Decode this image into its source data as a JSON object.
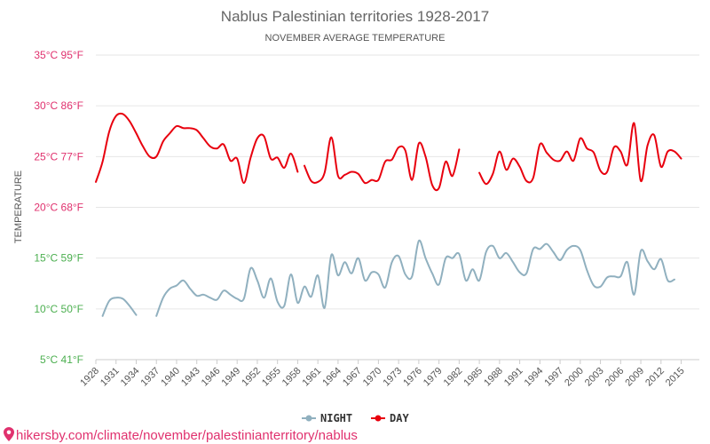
{
  "chart_data": {
    "type": "line",
    "title": "Nablus Palestinian territories 1928-2017",
    "subtitle": "NOVEMBER AVERAGE TEMPERATURE",
    "ylabel": "TEMPERATURE",
    "xlabel": "",
    "x_range": [
      1928,
      2017
    ],
    "ylim": [
      5,
      35
    ],
    "y_ticks": [
      {
        "value": 35,
        "label": "35°C 95°F",
        "color": "#e0316e"
      },
      {
        "value": 30,
        "label": "30°C 86°F",
        "color": "#e0316e"
      },
      {
        "value": 25,
        "label": "25°C 77°F",
        "color": "#e0316e"
      },
      {
        "value": 20,
        "label": "20°C 68°F",
        "color": "#e0316e"
      },
      {
        "value": 15,
        "label": "15°C 59°F",
        "color": "#4caf50"
      },
      {
        "value": 10,
        "label": "10°C 50°F",
        "color": "#4caf50"
      },
      {
        "value": 5,
        "label": "5°C 41°F",
        "color": "#4caf50"
      }
    ],
    "x_ticks": [
      "1928",
      "1931",
      "1934",
      "1937",
      "1940",
      "1943",
      "1946",
      "1949",
      "1952",
      "1955",
      "1958",
      "1961",
      "1964",
      "1967",
      "1970",
      "1973",
      "1976",
      "1979",
      "1982",
      "1985",
      "1988",
      "1991",
      "1994",
      "1997",
      "2000",
      "2003",
      "2006",
      "2009",
      "2012",
      "2015"
    ],
    "x_tick_values": [
      1928,
      1931,
      1934,
      1937,
      1940,
      1943,
      1946,
      1949,
      1952,
      1955,
      1958,
      1961,
      1964,
      1967,
      1970,
      1973,
      1976,
      1979,
      1982,
      1985,
      1988,
      1991,
      1994,
      1997,
      2000,
      2003,
      2006,
      2009,
      2012,
      2015
    ],
    "series": [
      {
        "name": "DAY",
        "color": "#e8000e",
        "segments": [
          [
            [
              1928,
              22.5
            ],
            [
              1929,
              24.5
            ],
            [
              1930,
              27.5
            ],
            [
              1931,
              29.0
            ],
            [
              1932,
              29.2
            ],
            [
              1933,
              28.5
            ],
            [
              1934,
              27.3
            ],
            [
              1935,
              26.0
            ],
            [
              1936,
              25.0
            ],
            [
              1937,
              25.0
            ],
            [
              1938,
              26.5
            ],
            [
              1939,
              27.3
            ],
            [
              1940,
              28.0
            ],
            [
              1941,
              27.8
            ],
            [
              1942,
              27.8
            ],
            [
              1943,
              27.6
            ],
            [
              1944,
              26.8
            ],
            [
              1945,
              26.0
            ],
            [
              1946,
              25.8
            ],
            [
              1947,
              26.2
            ],
            [
              1948,
              24.6
            ],
            [
              1949,
              24.8
            ],
            [
              1950,
              22.4
            ],
            [
              1951,
              24.9
            ],
            [
              1952,
              26.8
            ],
            [
              1953,
              27.0
            ],
            [
              1954,
              24.8
            ],
            [
              1955,
              24.9
            ],
            [
              1956,
              23.9
            ],
            [
              1957,
              25.3
            ],
            [
              1958,
              23.5
            ]
          ],
          [
            [
              1959,
              24.1
            ],
            [
              1960,
              22.6
            ],
            [
              1961,
              22.5
            ],
            [
              1962,
              23.4
            ],
            [
              1963,
              26.9
            ],
            [
              1964,
              23.1
            ],
            [
              1965,
              23.2
            ],
            [
              1966,
              23.5
            ],
            [
              1967,
              23.3
            ],
            [
              1968,
              22.4
            ],
            [
              1969,
              22.7
            ],
            [
              1970,
              22.7
            ],
            [
              1971,
              24.5
            ],
            [
              1972,
              24.7
            ],
            [
              1973,
              25.9
            ],
            [
              1974,
              25.6
            ],
            [
              1975,
              22.7
            ],
            [
              1976,
              26.3
            ],
            [
              1977,
              25.0
            ],
            [
              1978,
              22.2
            ],
            [
              1979,
              21.9
            ],
            [
              1980,
              24.5
            ],
            [
              1981,
              23.1
            ],
            [
              1982,
              25.7
            ]
          ],
          [
            [
              1985,
              23.4
            ],
            [
              1986,
              22.3
            ],
            [
              1987,
              23.3
            ],
            [
              1988,
              25.5
            ],
            [
              1989,
              23.7
            ],
            [
              1990,
              24.8
            ],
            [
              1991,
              24.0
            ],
            [
              1992,
              22.6
            ],
            [
              1993,
              22.9
            ],
            [
              1994,
              26.2
            ],
            [
              1995,
              25.4
            ],
            [
              1996,
              24.7
            ],
            [
              1997,
              24.6
            ],
            [
              1998,
              25.5
            ],
            [
              1999,
              24.6
            ],
            [
              2000,
              26.8
            ],
            [
              2001,
              25.8
            ],
            [
              2002,
              25.4
            ],
            [
              2003,
              23.6
            ],
            [
              2004,
              23.5
            ],
            [
              2005,
              25.9
            ],
            [
              2006,
              25.5
            ],
            [
              2007,
              24.2
            ],
            [
              2008,
              28.3
            ],
            [
              2009,
              22.6
            ],
            [
              2010,
              26.1
            ],
            [
              2011,
              27.1
            ],
            [
              2012,
              24.0
            ],
            [
              2013,
              25.5
            ],
            [
              2014,
              25.5
            ],
            [
              2015,
              24.8
            ]
          ]
        ]
      },
      {
        "name": "NIGHT",
        "color": "#90b0bf",
        "segments": [
          [
            [
              1929,
              9.3
            ],
            [
              1930,
              10.8
            ],
            [
              1931,
              11.1
            ],
            [
              1932,
              11.0
            ],
            [
              1933,
              10.3
            ],
            [
              1934,
              9.4
            ]
          ],
          [
            [
              1937,
              9.3
            ],
            [
              1938,
              11.1
            ],
            [
              1939,
              12.0
            ],
            [
              1940,
              12.3
            ],
            [
              1941,
              12.8
            ],
            [
              1942,
              12.0
            ],
            [
              1943,
              11.3
            ],
            [
              1944,
              11.4
            ],
            [
              1945,
              11.1
            ],
            [
              1946,
              10.9
            ],
            [
              1947,
              11.8
            ],
            [
              1948,
              11.4
            ],
            [
              1949,
              11.0
            ],
            [
              1950,
              11.0
            ],
            [
              1951,
              14.0
            ],
            [
              1952,
              12.8
            ],
            [
              1953,
              11.1
            ],
            [
              1954,
              13.0
            ],
            [
              1955,
              10.7
            ],
            [
              1956,
              10.3
            ],
            [
              1957,
              13.4
            ],
            [
              1958,
              10.6
            ],
            [
              1959,
              12.2
            ],
            [
              1960,
              11.2
            ],
            [
              1961,
              13.3
            ],
            [
              1962,
              10.1
            ],
            [
              1963,
              15.3
            ],
            [
              1964,
              13.3
            ],
            [
              1965,
              14.6
            ],
            [
              1966,
              13.5
            ],
            [
              1967,
              15.0
            ],
            [
              1968,
              12.8
            ],
            [
              1969,
              13.6
            ],
            [
              1970,
              13.4
            ],
            [
              1971,
              12.1
            ],
            [
              1972,
              14.6
            ],
            [
              1973,
              15.2
            ],
            [
              1974,
              13.4
            ],
            [
              1975,
              13.2
            ],
            [
              1976,
              16.7
            ],
            [
              1977,
              15.0
            ],
            [
              1978,
              13.5
            ],
            [
              1979,
              12.4
            ],
            [
              1980,
              15.0
            ],
            [
              1981,
              15.0
            ],
            [
              1982,
              15.4
            ],
            [
              1983,
              12.8
            ],
            [
              1984,
              13.9
            ],
            [
              1985,
              12.8
            ],
            [
              1986,
              15.6
            ],
            [
              1987,
              16.2
            ],
            [
              1988,
              15.0
            ],
            [
              1989,
              15.5
            ],
            [
              1990,
              14.6
            ],
            [
              1991,
              13.6
            ],
            [
              1992,
              13.5
            ],
            [
              1993,
              15.9
            ],
            [
              1994,
              15.9
            ],
            [
              1995,
              16.4
            ],
            [
              1996,
              15.6
            ],
            [
              1997,
              14.8
            ],
            [
              1998,
              15.8
            ],
            [
              1999,
              16.2
            ],
            [
              2000,
              15.8
            ],
            [
              2001,
              13.8
            ],
            [
              2002,
              12.3
            ],
            [
              2003,
              12.2
            ],
            [
              2004,
              13.1
            ],
            [
              2005,
              13.2
            ],
            [
              2006,
              13.2
            ],
            [
              2007,
              14.6
            ],
            [
              2008,
              11.4
            ],
            [
              2009,
              15.7
            ],
            [
              2010,
              14.7
            ],
            [
              2011,
              13.9
            ],
            [
              2012,
              14.9
            ],
            [
              2013,
              12.8
            ],
            [
              2014,
              12.9
            ]
          ]
        ]
      }
    ],
    "legend": [
      {
        "name": "NIGHT",
        "color": "#90b0bf"
      },
      {
        "name": "DAY",
        "color": "#e8000e"
      }
    ],
    "legend_position": "bottom-center",
    "grid": true
  },
  "source_link": {
    "text": "hikersby.com/climate/november/palestinianterritory/nablus",
    "icon": "location-pin-icon",
    "color": "#e0316e"
  }
}
